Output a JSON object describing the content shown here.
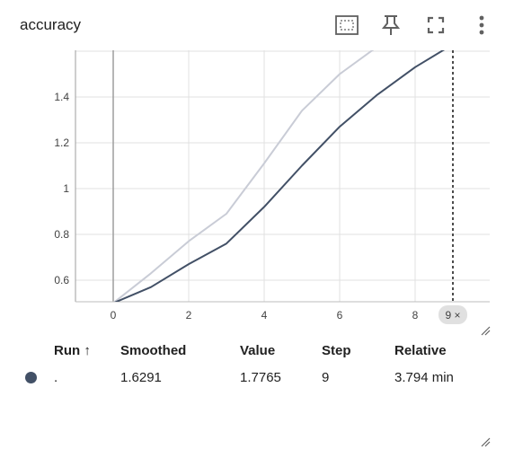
{
  "header": {
    "title": "accuracy",
    "icons": [
      "fit-domain-icon",
      "pin-icon",
      "fullscreen-icon",
      "more-vert-icon"
    ]
  },
  "chart_data": {
    "type": "line",
    "xlabel": "",
    "ylabel": "",
    "xlim": [
      -1,
      10
    ],
    "ylim": [
      0.5,
      1.8
    ],
    "x_ticks": [
      "0",
      "2",
      "4",
      "6",
      "8"
    ],
    "y_ticks": [
      "0.6",
      "0.8",
      "1",
      "1.2",
      "1.4"
    ],
    "grid": true,
    "series": [
      {
        "role": "raw",
        "color": "#c9ccd6",
        "x": [
          0,
          1,
          2,
          3,
          4,
          5,
          6,
          7
        ],
        "y": [
          0.5,
          0.63,
          0.77,
          0.89,
          1.11,
          1.34,
          1.5,
          1.62
        ]
      },
      {
        "role": "smoothed",
        "color": "#425066",
        "x": [
          0,
          1,
          2,
          3,
          4,
          5,
          6,
          7,
          8,
          9
        ],
        "y": [
          0.5,
          0.57,
          0.67,
          0.76,
          0.92,
          1.1,
          1.27,
          1.41,
          1.53,
          1.63
        ]
      }
    ],
    "cursor": {
      "x": 9,
      "label": "9 ×"
    }
  },
  "table": {
    "headers": {
      "run": "Run ↑",
      "smoothed": "Smoothed",
      "value": "Value",
      "step": "Step",
      "relative": "Relative"
    },
    "rows": [
      {
        "color": "#425066",
        "run": ".",
        "smoothed": "1.6291",
        "value": "1.7765",
        "step": "9",
        "relative": "3.794 min"
      }
    ]
  }
}
